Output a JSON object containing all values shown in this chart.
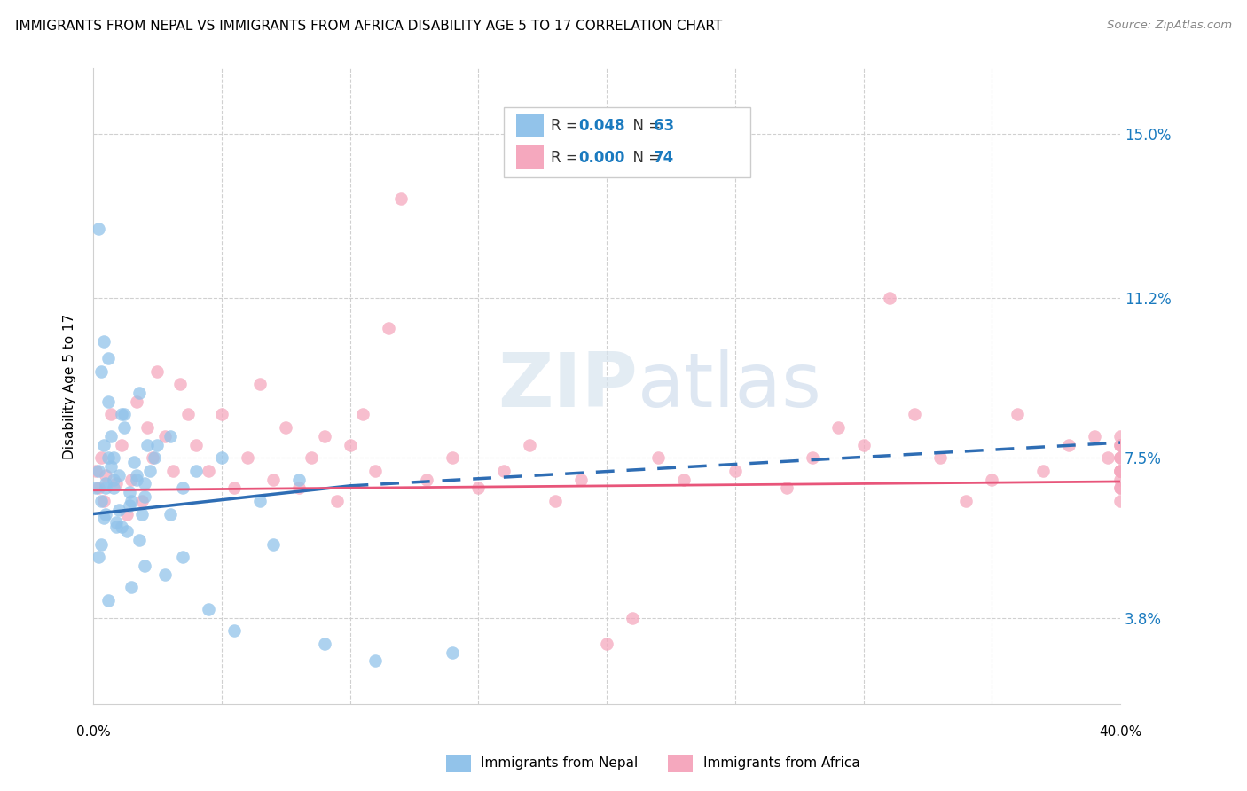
{
  "title": "IMMIGRANTS FROM NEPAL VS IMMIGRANTS FROM AFRICA DISABILITY AGE 5 TO 17 CORRELATION CHART",
  "source": "Source: ZipAtlas.com",
  "ylabel": "Disability Age 5 to 17",
  "ytick_values": [
    3.8,
    7.5,
    11.2,
    15.0
  ],
  "xlim": [
    0.0,
    40.0
  ],
  "ylim": [
    1.8,
    16.5
  ],
  "legend_label_nepal": "Immigrants from Nepal",
  "legend_label_africa": "Immigrants from Africa",
  "nepal_color": "#92C3EA",
  "africa_color": "#F5A8BE",
  "nepal_line_color": "#2E6DB4",
  "africa_line_color": "#E8557A",
  "watermark_text": "ZIPatlas",
  "nepal_x": [
    0.1,
    0.2,
    0.3,
    0.4,
    0.5,
    0.6,
    0.7,
    0.8,
    0.9,
    1.0,
    0.3,
    0.5,
    0.7,
    0.9,
    1.1,
    1.3,
    1.5,
    1.7,
    1.9,
    2.1,
    0.4,
    0.6,
    0.8,
    1.0,
    1.2,
    1.4,
    1.6,
    1.8,
    2.0,
    2.2,
    0.2,
    0.5,
    0.8,
    1.1,
    1.4,
    1.7,
    2.0,
    2.5,
    3.0,
    3.5,
    0.3,
    0.6,
    1.2,
    1.8,
    2.4,
    3.0,
    4.0,
    5.0,
    6.5,
    8.0,
    1.5,
    2.0,
    2.8,
    3.5,
    4.5,
    5.5,
    7.0,
    9.0,
    11.0,
    14.0,
    0.2,
    0.4,
    0.6
  ],
  "nepal_y": [
    6.8,
    7.2,
    6.5,
    7.8,
    6.2,
    7.5,
    8.0,
    6.8,
    5.9,
    7.1,
    5.5,
    6.9,
    7.3,
    6.0,
    8.5,
    5.8,
    6.5,
    7.0,
    6.2,
    7.8,
    6.1,
    9.8,
    7.5,
    6.3,
    8.2,
    6.7,
    7.4,
    5.6,
    6.9,
    7.2,
    5.2,
    6.8,
    7.0,
    5.9,
    6.4,
    7.1,
    6.6,
    7.8,
    6.2,
    6.8,
    9.5,
    8.8,
    8.5,
    9.0,
    7.5,
    8.0,
    7.2,
    7.5,
    6.5,
    7.0,
    4.5,
    5.0,
    4.8,
    5.2,
    4.0,
    3.5,
    5.5,
    3.2,
    2.8,
    3.0,
    12.8,
    10.2,
    4.2
  ],
  "africa_x": [
    0.1,
    0.2,
    0.3,
    0.4,
    0.5,
    0.7,
    0.9,
    1.1,
    1.3,
    1.5,
    1.7,
    1.9,
    2.1,
    2.3,
    2.5,
    2.8,
    3.1,
    3.4,
    3.7,
    4.0,
    4.5,
    5.0,
    5.5,
    6.0,
    6.5,
    7.0,
    7.5,
    8.0,
    8.5,
    9.0,
    9.5,
    10.0,
    10.5,
    11.0,
    11.5,
    12.0,
    13.0,
    14.0,
    15.0,
    16.0,
    17.0,
    18.0,
    19.0,
    20.0,
    21.0,
    22.0,
    23.0,
    25.0,
    27.0,
    28.0,
    29.0,
    30.0,
    31.0,
    32.0,
    33.0,
    34.0,
    35.0,
    36.0,
    37.0,
    38.0,
    39.0,
    39.5,
    40.0,
    40.0,
    40.0,
    40.0,
    40.0,
    40.0,
    40.0,
    40.0,
    40.0,
    40.0,
    40.0,
    40.0
  ],
  "africa_y": [
    7.2,
    6.8,
    7.5,
    6.5,
    7.1,
    8.5,
    6.9,
    7.8,
    6.2,
    7.0,
    8.8,
    6.5,
    8.2,
    7.5,
    9.5,
    8.0,
    7.2,
    9.2,
    8.5,
    7.8,
    7.2,
    8.5,
    6.8,
    7.5,
    9.2,
    7.0,
    8.2,
    6.8,
    7.5,
    8.0,
    6.5,
    7.8,
    8.5,
    7.2,
    10.5,
    13.5,
    7.0,
    7.5,
    6.8,
    7.2,
    7.8,
    6.5,
    7.0,
    3.2,
    3.8,
    7.5,
    7.0,
    7.2,
    6.8,
    7.5,
    8.2,
    7.8,
    11.2,
    8.5,
    7.5,
    6.5,
    7.0,
    8.5,
    7.2,
    7.8,
    8.0,
    7.5,
    6.8,
    7.2,
    6.5,
    7.8,
    7.5,
    8.0,
    7.2,
    6.8,
    7.5,
    7.0,
    7.8,
    7.2
  ],
  "nepal_trend_start_x": 0.0,
  "nepal_trend_start_y": 6.2,
  "nepal_trend_mid_x": 10.0,
  "nepal_trend_mid_y": 6.85,
  "nepal_trend_end_x": 40.0,
  "nepal_trend_end_y": 7.85,
  "africa_trend_start_x": 0.0,
  "africa_trend_y": 6.8
}
